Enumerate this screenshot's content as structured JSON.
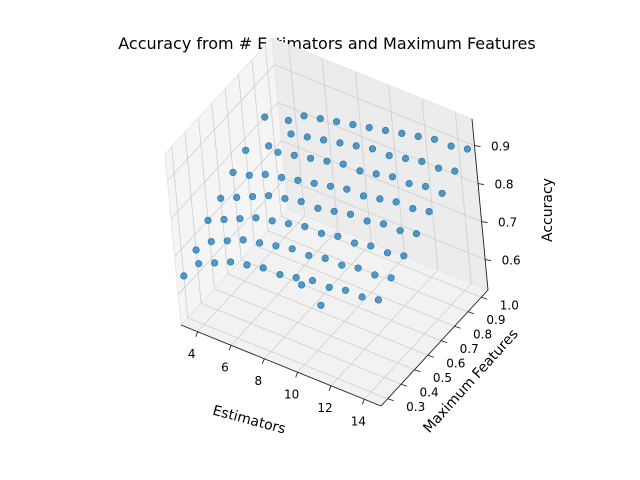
{
  "chart_data": {
    "type": "scatter",
    "projection": "3d",
    "title": "Accuracy from # Estimators and Maximum Features",
    "xlabel": "Estimators",
    "ylabel": "Maximum Features",
    "zlabel": "Accuracy",
    "xlim": [
      3,
      15
    ],
    "ylim": [
      0.25,
      1.05
    ],
    "zlim": [
      0.52,
      0.97
    ],
    "xticks": [
      "4",
      "6",
      "8",
      "10",
      "12",
      "14"
    ],
    "yticks": [
      "0.3",
      "0.4",
      "0.5",
      "0.6",
      "0.7",
      "0.8",
      "0.9",
      "1.0"
    ],
    "zticks": [
      "0.6",
      "0.7",
      "0.8",
      "0.9"
    ],
    "grid": true,
    "colors": {
      "marker": "#1f77b4",
      "pane": "#f2f2f2",
      "gridline": "#cfcfcf"
    },
    "x": [
      3,
      3,
      3,
      3,
      3,
      3,
      3,
      4,
      4,
      4,
      4,
      4,
      4,
      4,
      5,
      5,
      5,
      5,
      5,
      5,
      5,
      5,
      6,
      6,
      6,
      6,
      6,
      6,
      6,
      6,
      7,
      7,
      7,
      7,
      7,
      7,
      7,
      7,
      8,
      8,
      8,
      8,
      8,
      8,
      8,
      8,
      8,
      9,
      9,
      9,
      9,
      9,
      9,
      9,
      9,
      10,
      10,
      10,
      10,
      10,
      10,
      10,
      10,
      10,
      11,
      11,
      11,
      11,
      11,
      11,
      11,
      11,
      12,
      12,
      12,
      12,
      12,
      12,
      12,
      12,
      13,
      13,
      13,
      13,
      13,
      13,
      13,
      13,
      14,
      14,
      14,
      14,
      14,
      14,
      14,
      14,
      15,
      15,
      15,
      15,
      15,
      15,
      15,
      15
    ],
    "y": [
      0.3,
      0.4,
      0.5,
      0.6,
      0.7,
      0.8,
      0.95,
      0.3,
      0.4,
      0.5,
      0.6,
      0.7,
      0.85,
      1.0,
      0.3,
      0.4,
      0.5,
      0.6,
      0.7,
      0.8,
      0.9,
      1.0,
      0.3,
      0.4,
      0.5,
      0.6,
      0.7,
      0.8,
      0.9,
      1.0,
      0.3,
      0.4,
      0.5,
      0.6,
      0.7,
      0.8,
      0.9,
      1.0,
      0.3,
      0.4,
      0.5,
      0.6,
      0.7,
      0.8,
      0.9,
      1.0,
      0.55,
      0.3,
      0.4,
      0.5,
      0.6,
      0.7,
      0.8,
      0.9,
      1.0,
      0.3,
      0.4,
      0.5,
      0.6,
      0.7,
      0.8,
      0.9,
      1.0,
      0.45,
      0.3,
      0.4,
      0.5,
      0.6,
      0.7,
      0.8,
      0.9,
      1.0,
      0.3,
      0.4,
      0.5,
      0.6,
      0.7,
      0.8,
      0.9,
      1.0,
      0.3,
      0.4,
      0.5,
      0.6,
      0.7,
      0.8,
      0.9,
      1.0,
      0.3,
      0.4,
      0.5,
      0.6,
      0.7,
      0.8,
      0.9,
      1.0,
      0.3,
      0.4,
      0.5,
      0.6,
      0.7,
      0.8,
      0.9,
      1.0
    ],
    "z": [
      0.63,
      0.66,
      0.7,
      0.72,
      0.75,
      0.77,
      0.8,
      0.68,
      0.7,
      0.72,
      0.74,
      0.76,
      0.78,
      0.79,
      0.7,
      0.72,
      0.74,
      0.76,
      0.78,
      0.8,
      0.81,
      0.82,
      0.72,
      0.74,
      0.76,
      0.78,
      0.79,
      0.81,
      0.82,
      0.83,
      0.73,
      0.75,
      0.77,
      0.79,
      0.8,
      0.82,
      0.83,
      0.84,
      0.74,
      0.76,
      0.78,
      0.8,
      0.81,
      0.83,
      0.84,
      0.85,
      0.6,
      0.74,
      0.77,
      0.79,
      0.8,
      0.82,
      0.84,
      0.85,
      0.86,
      0.75,
      0.77,
      0.79,
      0.81,
      0.83,
      0.84,
      0.86,
      0.87,
      0.62,
      0.76,
      0.78,
      0.8,
      0.82,
      0.83,
      0.85,
      0.86,
      0.88,
      0.76,
      0.78,
      0.8,
      0.82,
      0.84,
      0.86,
      0.87,
      0.89,
      0.77,
      0.79,
      0.81,
      0.83,
      0.85,
      0.86,
      0.88,
      0.9,
      0.77,
      0.79,
      0.81,
      0.83,
      0.85,
      0.87,
      0.88,
      0.9,
      0.78,
      0.8,
      0.82,
      0.84,
      0.86,
      0.87,
      0.89,
      0.91
    ]
  }
}
